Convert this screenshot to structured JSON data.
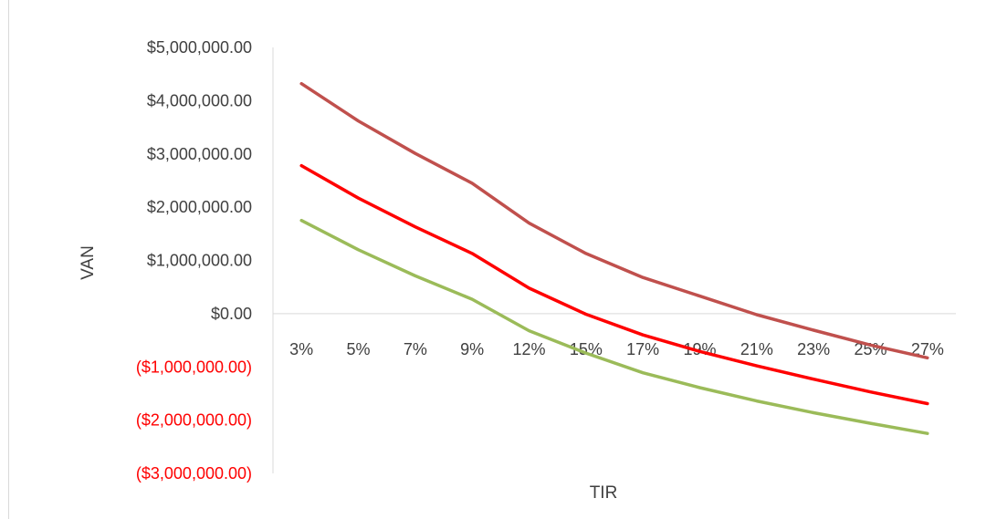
{
  "chart_data": {
    "type": "line",
    "title": "",
    "xlabel": "TIR",
    "ylabel": "VAN",
    "categories": [
      "3%",
      "5%",
      "7%",
      "9%",
      "12%",
      "15%",
      "17%",
      "19%",
      "21%",
      "23%",
      "25%",
      "27%"
    ],
    "ylim": [
      -3000000,
      5000000
    ],
    "y_ticks": [
      5000000,
      4000000,
      3000000,
      2000000,
      1000000,
      0,
      -1000000,
      -2000000,
      -3000000
    ],
    "y_tick_labels": [
      "$5,000,000.00",
      "$4,000,000.00",
      "$3,000,000.00",
      "$2,000,000.00",
      "$1,000,000.00",
      "$0.00",
      "($1,000,000.00)",
      "($2,000,000.00)",
      "($3,000,000.00)"
    ],
    "grid": false,
    "legend": "none",
    "series": [
      {
        "color": "#c0504d",
        "values": [
          4320000,
          3620000,
          3010000,
          2450000,
          1700000,
          1130000,
          680000,
          330000,
          -20000,
          -310000,
          -590000,
          -830000
        ]
      },
      {
        "color": "#ff0000",
        "values": [
          2780000,
          2170000,
          1630000,
          1130000,
          480000,
          -10000,
          -400000,
          -710000,
          -980000,
          -1230000,
          -1470000,
          -1690000
        ]
      },
      {
        "color": "#9bbb59",
        "values": [
          1750000,
          1200000,
          710000,
          270000,
          -320000,
          -740000,
          -1110000,
          -1390000,
          -1640000,
          -1860000,
          -2060000,
          -2250000
        ]
      }
    ],
    "colors": {
      "positive_tick": "#404040",
      "negative_tick": "#ff0000",
      "axis": "#d9d9d9"
    }
  }
}
